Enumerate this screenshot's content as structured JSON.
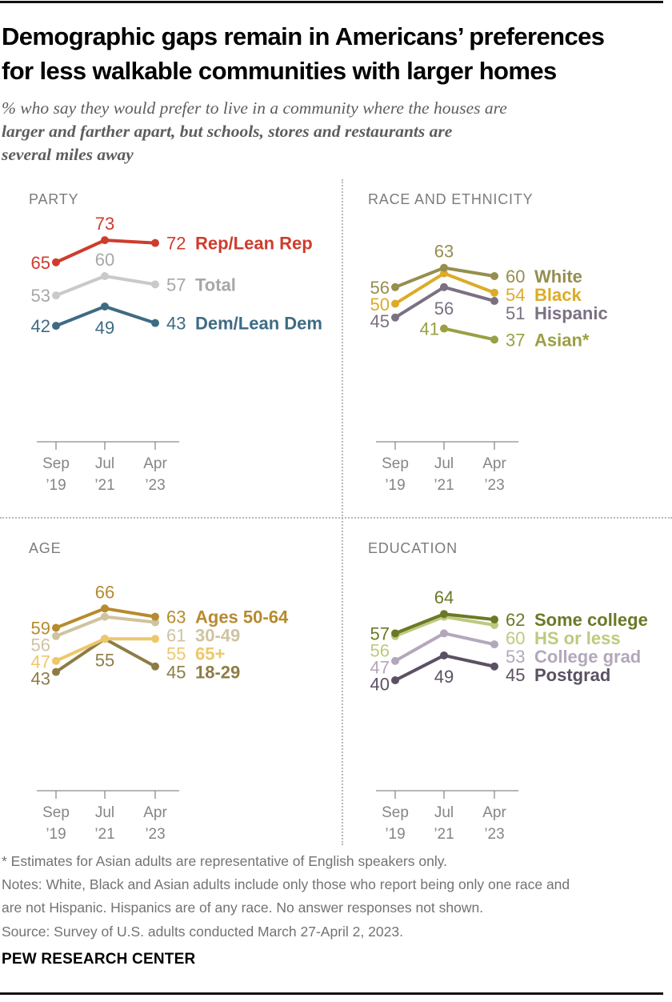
{
  "header": {
    "title_lines": [
      "Demographic gaps remain in Americans’ preferences",
      "for less walkable communities with larger homes"
    ]
  },
  "subtitle": {
    "lines": [
      {
        "text": "% who say they would prefer to live in a community where the houses are",
        "bold": false
      },
      {
        "text": "larger and farther apart, but schools, stores and restaurants are",
        "bold": true
      },
      {
        "text": "several miles away",
        "bold": true
      }
    ]
  },
  "chart_data": [
    {
      "type": "line",
      "panel": "PARTY",
      "x_ticks": [
        [
          "Sep",
          "’19"
        ],
        [
          "Jul",
          "’21"
        ],
        [
          "Apr",
          "’23"
        ]
      ],
      "ylim": [
        0,
        80
      ],
      "grid": false,
      "legend_position": "right-of-last-point",
      "series": [
        {
          "name": "Rep/Lean Rep",
          "color": "#ce3c2d",
          "values": [
            65,
            73,
            72
          ],
          "label_first": true,
          "label_mid": "above"
        },
        {
          "name": "Total",
          "color": "#a7a7a7",
          "line_color": "#c9c9c9",
          "values": [
            53,
            60,
            57
          ],
          "label_first": true,
          "label_mid": "above"
        },
        {
          "name": "Dem/Lean Dem",
          "color": "#3e6b83",
          "values": [
            42,
            49,
            43
          ],
          "label_first": true,
          "label_mid": "below"
        }
      ]
    },
    {
      "type": "line",
      "panel": "RACE AND ETHNICITY",
      "x_ticks": [
        [
          "Sep",
          "’19"
        ],
        [
          "Jul",
          "’21"
        ],
        [
          "Apr",
          "’23"
        ]
      ],
      "ylim": [
        0,
        80
      ],
      "grid": false,
      "legend_position": "right-of-last-point",
      "series": [
        {
          "name": "White",
          "color": "#968e4f",
          "values": [
            56,
            63,
            60
          ],
          "label_first": true,
          "label_mid": "above"
        },
        {
          "name": "Black",
          "color": "#dcab27",
          "values": [
            50,
            61,
            54
          ],
          "label_first": true,
          "label_mid": null
        },
        {
          "name": "Hispanic",
          "color": "#7b7082",
          "values": [
            45,
            56,
            51
          ],
          "label_first": true,
          "label_mid": "below"
        },
        {
          "name": "Asian*",
          "color": "#9aa042",
          "values": [
            null,
            41,
            37
          ],
          "label_first": false,
          "label_mid": "left"
        }
      ]
    },
    {
      "type": "line",
      "panel": "AGE",
      "x_ticks": [
        [
          "Sep",
          "’19"
        ],
        [
          "Jul",
          "’21"
        ],
        [
          "Apr",
          "’23"
        ]
      ],
      "ylim": [
        0,
        80
      ],
      "grid": false,
      "legend_position": "right-of-last-point",
      "series": [
        {
          "name": "Ages 50-64",
          "color": "#b68b2e",
          "values": [
            59,
            66,
            63
          ],
          "label_first": true,
          "label_mid": "above"
        },
        {
          "name": "30-49",
          "color": "#cfc3a0",
          "values": [
            56,
            63,
            61
          ],
          "label_first": true,
          "label_mid": null
        },
        {
          "name": "65+",
          "color": "#eec76a",
          "values": [
            47,
            55,
            55
          ],
          "label_first": true,
          "label_mid": null
        },
        {
          "name": "18-29",
          "color": "#8d7d45",
          "values": [
            43,
            55,
            45
          ],
          "label_first": true,
          "label_mid": "below"
        }
      ]
    },
    {
      "type": "line",
      "panel": "EDUCATION",
      "x_ticks": [
        [
          "Sep",
          "’19"
        ],
        [
          "Jul",
          "’21"
        ],
        [
          "Apr",
          "’23"
        ]
      ],
      "ylim": [
        0,
        80
      ],
      "grid": false,
      "legend_position": "right-of-last-point",
      "series": [
        {
          "name": "Some college",
          "color": "#6d7826",
          "values": [
            57,
            64,
            62
          ],
          "label_first": true,
          "label_mid": "above"
        },
        {
          "name": "HS or less",
          "color": "#bdca7e",
          "values": [
            56,
            63,
            60
          ],
          "label_first": true,
          "label_mid": null
        },
        {
          "name": "College grad",
          "color": "#b4a7bb",
          "values": [
            47,
            57,
            53
          ],
          "label_first": true,
          "label_mid": null
        },
        {
          "name": "Postgrad",
          "color": "#5c5163",
          "values": [
            40,
            49,
            45
          ],
          "label_first": true,
          "label_mid": "below"
        }
      ]
    }
  ],
  "footer": {
    "lines": [
      "* Estimates for Asian adults are representative of English speakers only.",
      "Notes: White, Black and Asian adults include only those who report being only one race and",
      "are not Hispanic. Hispanics are of any race. No answer responses not shown.",
      "Source: Survey of U.S. adults conducted March 27-April 2, 2023."
    ],
    "brand": "PEW RESEARCH CENTER"
  }
}
